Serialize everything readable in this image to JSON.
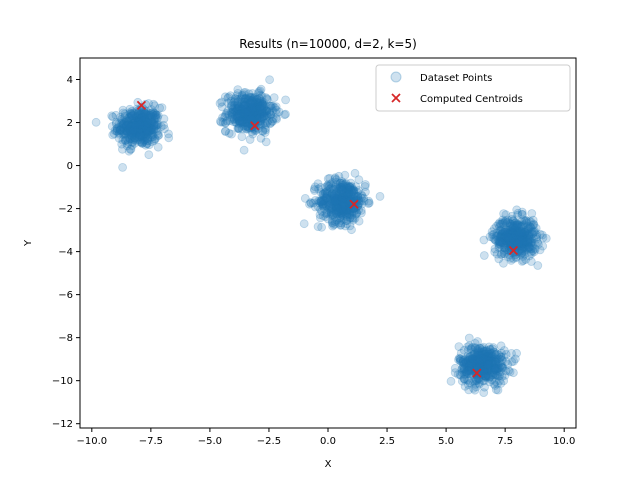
{
  "chart_data": {
    "type": "scatter",
    "title": "Results (n=10000, d=2, k=5)",
    "xlabel": "X",
    "ylabel": "Y",
    "xlim": [
      -10.5,
      10.5
    ],
    "ylim": [
      -12.2,
      5
    ],
    "xticks": [
      -10.0,
      -7.5,
      -5.0,
      -2.5,
      0.0,
      2.5,
      5.0,
      7.5,
      10.0
    ],
    "xtick_labels": [
      "−10.0",
      "−7.5",
      "−5.0",
      "−2.5",
      "0.0",
      "2.5",
      "5.0",
      "7.5",
      "10.0"
    ],
    "yticks": [
      -12,
      -10,
      -8,
      -6,
      -4,
      -2,
      0,
      2,
      4
    ],
    "ytick_labels": [
      "−12",
      "−10",
      "−8",
      "−6",
      "−4",
      "−2",
      "0",
      "2",
      "4"
    ],
    "legend_position": "upper right",
    "series": [
      {
        "name": "Dataset Points",
        "marker": "circle",
        "color": "#1f77b4",
        "alpha": 0.22,
        "clusters": [
          {
            "center": [
              -8.0,
              1.8
            ],
            "spread": [
              0.45,
              0.45
            ]
          },
          {
            "center": [
              -3.3,
              2.45
            ],
            "spread": [
              0.5,
              0.45
            ]
          },
          {
            "center": [
              0.6,
              -1.65
            ],
            "spread": [
              0.5,
              0.5
            ]
          },
          {
            "center": [
              7.95,
              -3.35
            ],
            "spread": [
              0.45,
              0.45
            ]
          },
          {
            "center": [
              6.55,
              -9.25
            ],
            "spread": [
              0.5,
              0.45
            ]
          }
        ]
      },
      {
        "name": "Computed Centroids",
        "marker": "x",
        "color": "#d62728",
        "points": [
          {
            "x": -7.9,
            "y": 2.8
          },
          {
            "x": -3.1,
            "y": 1.85
          },
          {
            "x": 1.1,
            "y": -1.8
          },
          {
            "x": 7.85,
            "y": -3.95
          },
          {
            "x": 6.3,
            "y": -9.65
          }
        ]
      }
    ]
  }
}
